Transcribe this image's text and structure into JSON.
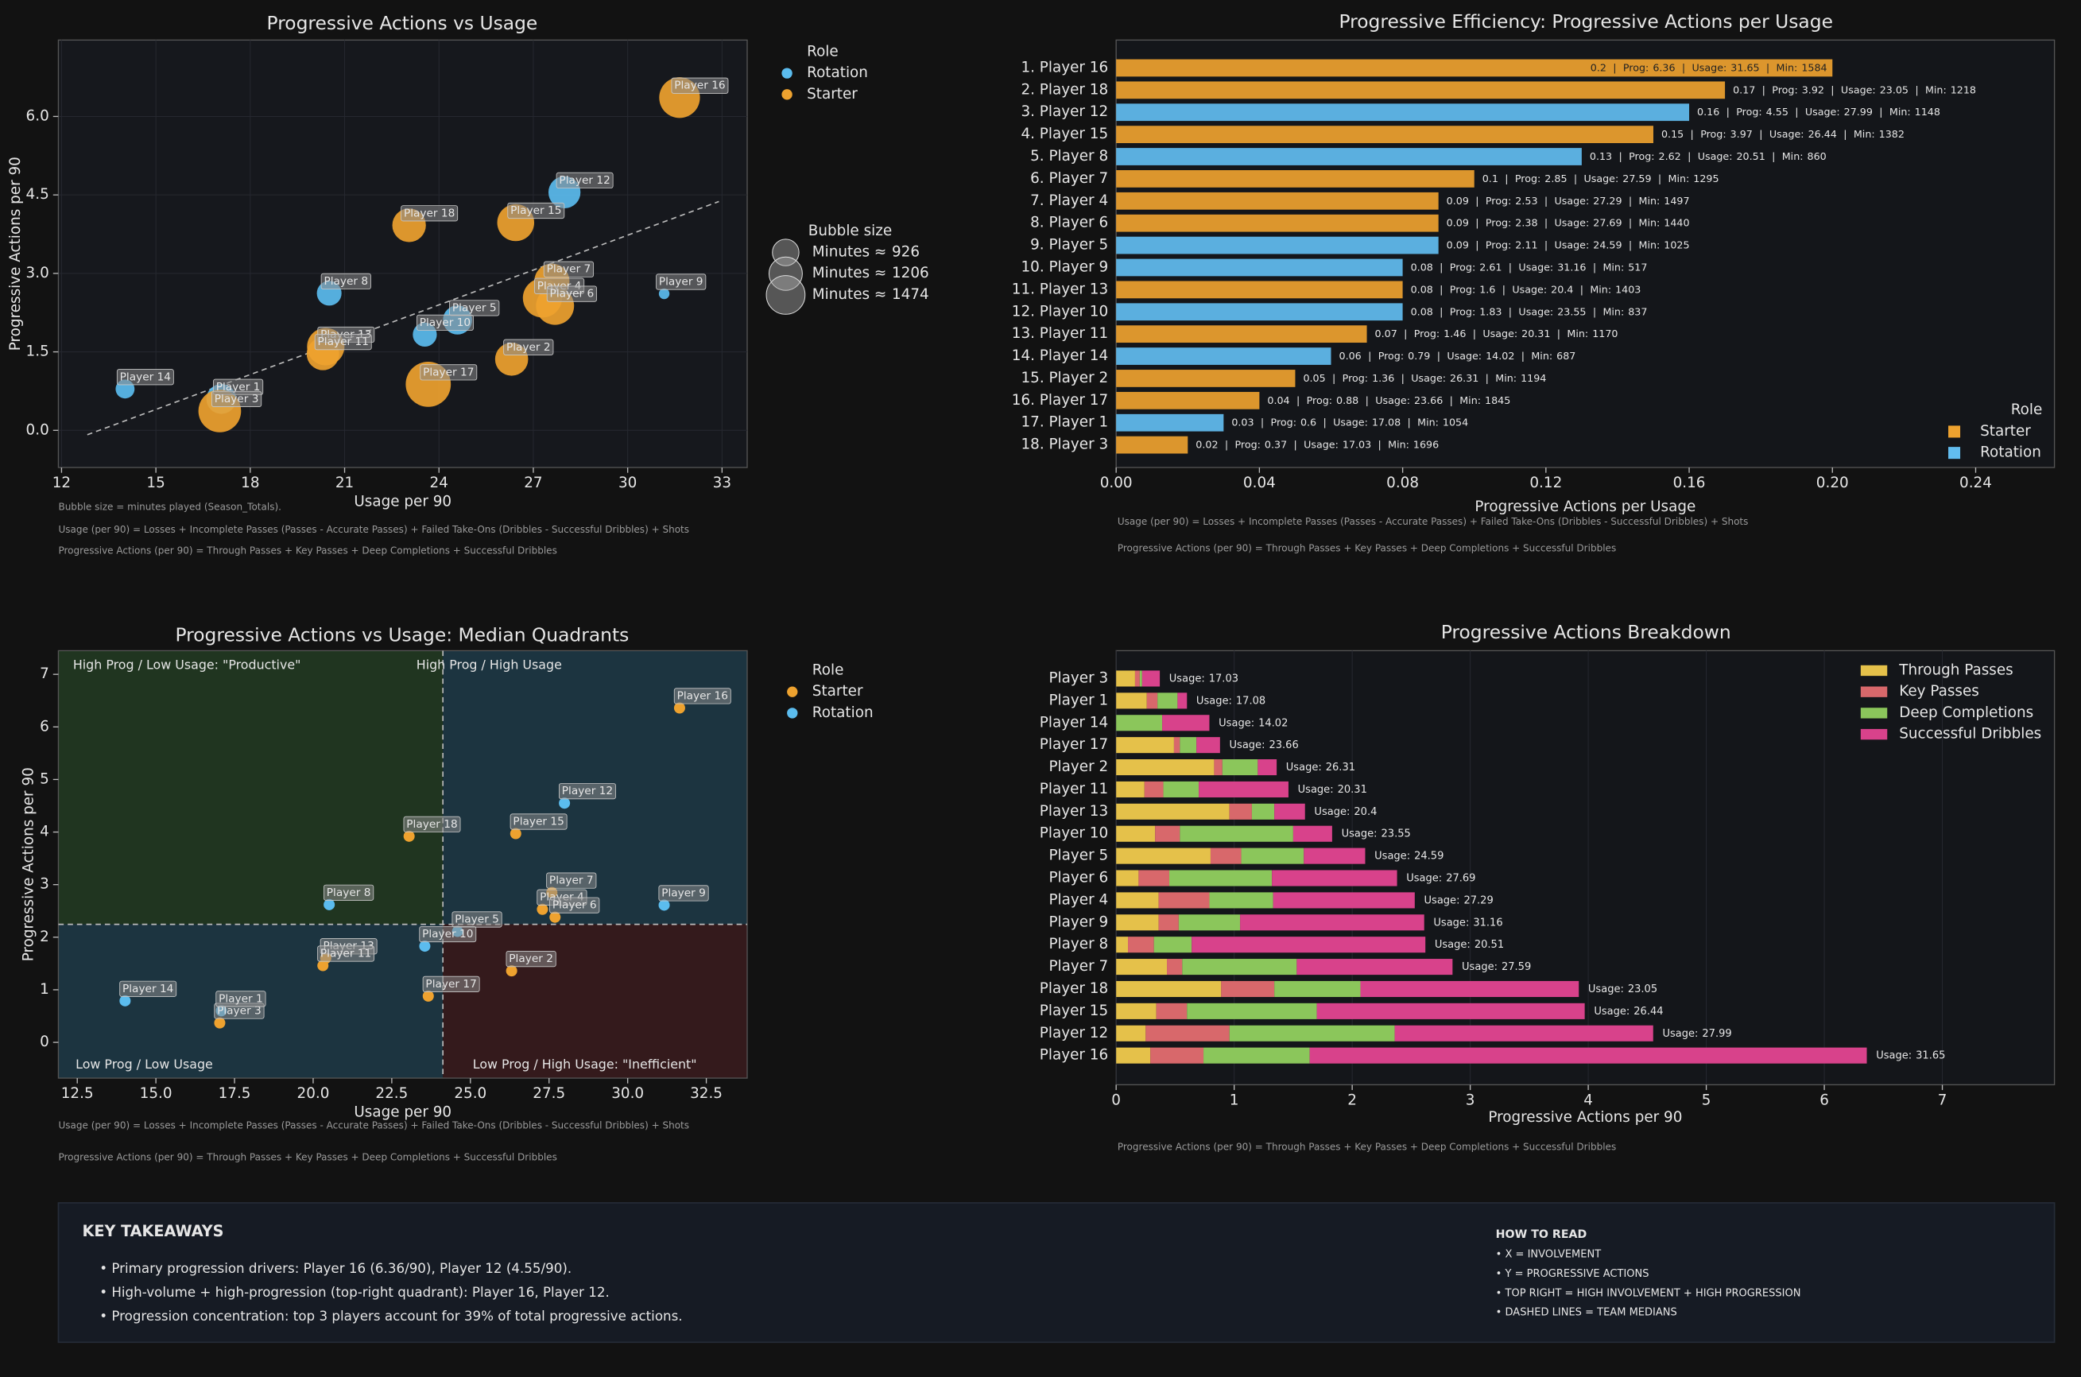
{
  "chart_data": [
    {
      "type": "bubble",
      "title": "Progressive Actions vs Usage",
      "x_label": "Usage per 90",
      "y_label": "Progressive Actions per 90",
      "xlim": [
        11.9,
        33.8
      ],
      "xticks": [
        12,
        15,
        18,
        21,
        24,
        27,
        30,
        33
      ],
      "ylim": [
        -0.71,
        7.46
      ],
      "yticks": [
        {
          "value": 0,
          "label": "0.0"
        },
        {
          "value": 1.5,
          "label": "1.5"
        },
        {
          "value": 3,
          "label": "3.0"
        },
        {
          "value": 4.5,
          "label": "4.5"
        },
        {
          "value": 6,
          "label": "6.0"
        }
      ],
      "grid": true,
      "trendline": true,
      "legend_title": "Role",
      "series": [
        {
          "name": "Rotation",
          "color": "#5bbcee",
          "labels": [
            "Player 12",
            "Player 8",
            "Player 5",
            "Player 9",
            "Player 10",
            "Player 14",
            "Player 1"
          ],
          "x": [
            27.99,
            20.51,
            24.59,
            31.16,
            23.55,
            14.02,
            17.08
          ],
          "values": [
            4.55,
            2.62,
            2.11,
            2.61,
            1.83,
            0.79,
            0.6
          ],
          "sizes": [
            1148,
            860,
            1025,
            517,
            837,
            687,
            1054
          ]
        },
        {
          "name": "Starter",
          "color": "#eea22f",
          "labels": [
            "Player 16",
            "Player 18",
            "Player 15",
            "Player 7",
            "Player 4",
            "Player 6",
            "Player 13",
            "Player 11",
            "Player 2",
            "Player 17",
            "Player 3"
          ],
          "x": [
            31.65,
            23.05,
            26.44,
            27.59,
            27.29,
            27.69,
            20.4,
            20.31,
            26.31,
            23.66,
            17.03
          ],
          "values": [
            6.36,
            3.92,
            3.97,
            2.85,
            2.53,
            2.38,
            1.6,
            1.46,
            1.36,
            0.88,
            0.37
          ],
          "sizes": [
            1584,
            1218,
            1382,
            1295,
            1497,
            1440,
            1403,
            1170,
            1194,
            1845,
            1696
          ]
        }
      ],
      "size_legend": {
        "title": "Bubble size",
        "prefix": "Minutes ≈",
        "values": [
          926,
          1206,
          1474
        ]
      },
      "notes": [
        "Bubble size = minutes played (Season_Totals).",
        "Usage (per 90) = Losses + Incomplete Passes (Passes - Accurate Passes) + Failed Take-Ons (Dribbles - Successful Dribbles) + Shots",
        "Progressive Actions (per 90) = Through Passes + Key Passes + Deep Completions + Successful Dribbles"
      ]
    },
    {
      "type": "bar",
      "orientation": "horizontal",
      "title": "Progressive Efficiency: Progressive Actions per Usage",
      "x_label": "Progressive Actions per Usage",
      "categories": [
        "1. Player 16",
        "2. Player 18",
        "3. Player 12",
        "4. Player 15",
        "5. Player 8",
        "6. Player 7",
        "7. Player 4",
        "8. Player 6",
        "9. Player 5",
        "10. Player 9",
        "11. Player 13",
        "12. Player 10",
        "13. Player 11",
        "14. Player 14",
        "15. Player 2",
        "16. Player 17",
        "17. Player 1",
        "18. Player 3"
      ],
      "values": [
        0.2,
        0.17,
        0.16,
        0.15,
        0.13,
        0.1,
        0.09,
        0.09,
        0.09,
        0.08,
        0.08,
        0.08,
        0.07,
        0.06,
        0.05,
        0.04,
        0.03,
        0.02
      ],
      "roles": [
        "Starter",
        "Starter",
        "Rotation",
        "Starter",
        "Rotation",
        "Starter",
        "Starter",
        "Starter",
        "Rotation",
        "Rotation",
        "Starter",
        "Rotation",
        "Starter",
        "Rotation",
        "Starter",
        "Starter",
        "Rotation",
        "Starter"
      ],
      "prog": [
        6.36,
        3.92,
        4.55,
        3.97,
        2.62,
        2.85,
        2.53,
        2.38,
        2.11,
        2.61,
        1.6,
        1.83,
        1.46,
        0.79,
        1.36,
        0.88,
        0.6,
        0.37
      ],
      "usage": [
        31.65,
        23.05,
        27.99,
        26.44,
        20.51,
        27.59,
        27.29,
        27.69,
        24.59,
        31.16,
        20.4,
        23.55,
        20.31,
        14.02,
        26.31,
        23.66,
        17.08,
        17.03
      ],
      "minutes": [
        1584,
        1218,
        1148,
        1382,
        860,
        1295,
        1497,
        1440,
        1025,
        517,
        1403,
        837,
        1170,
        687,
        1194,
        1845,
        1054,
        1696
      ],
      "label_parts": {
        "separator": "|",
        "prog": "Prog:",
        "usage": "Usage:",
        "minutes": "Min:"
      },
      "xlim": [
        0,
        0.262
      ],
      "xticks": [
        {
          "value": 0,
          "label": "0.00"
        },
        {
          "value": 0.04,
          "label": "0.04"
        },
        {
          "value": 0.08,
          "label": "0.08"
        },
        {
          "value": 0.12,
          "label": "0.12"
        },
        {
          "value": 0.16,
          "label": "0.16"
        },
        {
          "value": 0.2,
          "label": "0.20"
        },
        {
          "value": 0.24,
          "label": "0.24"
        }
      ],
      "legend_title": "Role",
      "legend_position": "lower right",
      "legend": [
        {
          "name": "Starter",
          "color": "#eea22f"
        },
        {
          "name": "Rotation",
          "color": "#62bdf0"
        }
      ],
      "notes": [
        "Usage (per 90) = Losses + Incomplete Passes (Passes - Accurate Passes) + Failed Take-Ons (Dribbles - Successful Dribbles) + Shots",
        "Progressive Actions (per 90) = Through Passes + Key Passes + Deep Completions + Successful Dribbles"
      ]
    },
    {
      "type": "quadrant",
      "title": "Progressive Actions vs Usage: Median Quadrants",
      "x_label": "Usage per 90",
      "y_label": "Progressive Actions per 90",
      "xlim": [
        11.9,
        33.8
      ],
      "xticks": [
        12.5,
        {
          "value": 15,
          "label": "15.0"
        },
        17.5,
        {
          "value": 20,
          "label": "20.0"
        },
        22.5,
        {
          "value": 25,
          "label": "25.0"
        },
        27.5,
        {
          "value": 30,
          "label": "30.0"
        },
        32.5
      ],
      "ylim": [
        -0.68,
        7.45
      ],
      "yticks": [
        0,
        1,
        2,
        3,
        4,
        5,
        6,
        7
      ],
      "x_median": 24.125,
      "y_median": 2.245,
      "quadrant_labels": {
        "top_left": "High Prog / Low Usage: \"Productive\"",
        "top_right": "High Prog / High Usage",
        "bottom_left": "Low Prog / Low Usage",
        "bottom_right": "Low Prog / High Usage: \"Inefficient\""
      },
      "quadrant_colors": {
        "top_left": "#203520",
        "top_right": "#1c3440",
        "bottom_left": "#1c3440",
        "bottom_right": "#341a1c"
      },
      "legend_title": "Role",
      "series": [
        {
          "name": "Starter",
          "color": "#eea22f",
          "labels": [
            "Player 16",
            "Player 18",
            "Player 15",
            "Player 7",
            "Player 4",
            "Player 6",
            "Player 13",
            "Player 11",
            "Player 2",
            "Player 17",
            "Player 3"
          ],
          "x": [
            31.65,
            23.05,
            26.44,
            27.59,
            27.29,
            27.69,
            20.4,
            20.31,
            26.31,
            23.66,
            17.03
          ],
          "values": [
            6.36,
            3.92,
            3.97,
            2.85,
            2.53,
            2.38,
            1.6,
            1.46,
            1.36,
            0.88,
            0.37
          ]
        },
        {
          "name": "Rotation",
          "color": "#5bbcee",
          "labels": [
            "Player 12",
            "Player 8",
            "Player 5",
            "Player 9",
            "Player 10",
            "Player 14",
            "Player 1"
          ],
          "x": [
            27.99,
            20.51,
            24.59,
            31.16,
            23.55,
            14.02,
            17.08
          ],
          "values": [
            4.55,
            2.62,
            2.11,
            2.61,
            1.83,
            0.79,
            0.6
          ]
        }
      ],
      "notes": [
        "Usage (per 90) = Losses + Incomplete Passes (Passes - Accurate Passes) + Failed Take-Ons (Dribbles - Successful Dribbles) + Shots",
        "Progressive Actions (per 90) = Through Passes + Key Passes + Deep Completions + Successful Dribbles"
      ]
    },
    {
      "type": "stacked_bar",
      "orientation": "horizontal",
      "title": "Progressive Actions Breakdown",
      "x_label": "Progressive Actions per 90",
      "categories": [
        "Player 3",
        "Player 1",
        "Player 14",
        "Player 17",
        "Player 2",
        "Player 11",
        "Player 13",
        "Player 10",
        "Player 5",
        "Player 6",
        "Player 4",
        "Player 9",
        "Player 8",
        "Player 7",
        "Player 18",
        "Player 15",
        "Player 12",
        "Player 16"
      ],
      "series": [
        {
          "name": "Through Passes",
          "color": "#e5c14a",
          "values": [
            0.16,
            0.26,
            0,
            0.49,
            0.83,
            0.24,
            0.96,
            0.33,
            0.8,
            0.19,
            0.36,
            0.36,
            0.1,
            0.43,
            0.89,
            0.34,
            0.25,
            0.29
          ]
        },
        {
          "name": "Key Passes",
          "color": "#d8686b",
          "values": [
            0.04,
            0.09,
            0,
            0.05,
            0.07,
            0.16,
            0.19,
            0.21,
            0.26,
            0.26,
            0.43,
            0.17,
            0.22,
            0.13,
            0.45,
            0.26,
            0.71,
            0.45
          ]
        },
        {
          "name": "Deep Completions",
          "color": "#8bc65b",
          "values": [
            0.02,
            0.17,
            0.39,
            0.14,
            0.3,
            0.3,
            0.19,
            0.96,
            0.53,
            0.87,
            0.54,
            0.52,
            0.32,
            0.97,
            0.73,
            1.1,
            1.4,
            0.9
          ]
        },
        {
          "name": "Successful Dribbles",
          "color": "#d8428b",
          "values": [
            0.15,
            0.08,
            0.4,
            0.2,
            0.16,
            0.76,
            0.26,
            0.33,
            0.52,
            1.06,
            1.2,
            1.56,
            1.98,
            1.32,
            1.85,
            2.27,
            2.19,
            4.72
          ]
        }
      ],
      "usage": [
        17.03,
        17.08,
        14.02,
        23.66,
        26.31,
        20.31,
        20.4,
        23.55,
        24.59,
        27.69,
        27.29,
        31.16,
        20.51,
        27.59,
        23.05,
        26.44,
        27.99,
        31.65
      ],
      "usage_prefix": "Usage:",
      "xlim": [
        0,
        7.95
      ],
      "xticks": [
        0,
        1,
        2,
        3,
        4,
        5,
        6,
        7
      ],
      "legend_position": "upper right",
      "notes": [
        "Progressive Actions (per 90) = Through Passes + Key Passes + Deep Completions + Successful Dribbles"
      ]
    }
  ],
  "key_takeaways": {
    "title": "KEY TAKEAWAYS",
    "items": [
      "• Primary progression drivers: Player 16 (6.36/90), Player 12 (4.55/90).",
      "• High-volume + high-progression (top-right quadrant): Player 16, Player 12.",
      "• Progression concentration: top 3 players account for 39% of total progressive actions."
    ]
  },
  "how_to_read": {
    "title": "HOW TO READ",
    "items": [
      "• X = INVOLVEMENT",
      "• Y = PROGRESSIVE ACTIONS",
      "• TOP RIGHT = HIGH INVOLVEMENT + HIGH PROGRESSION",
      "• DASHED LINES = TEAM MEDIANS"
    ]
  }
}
